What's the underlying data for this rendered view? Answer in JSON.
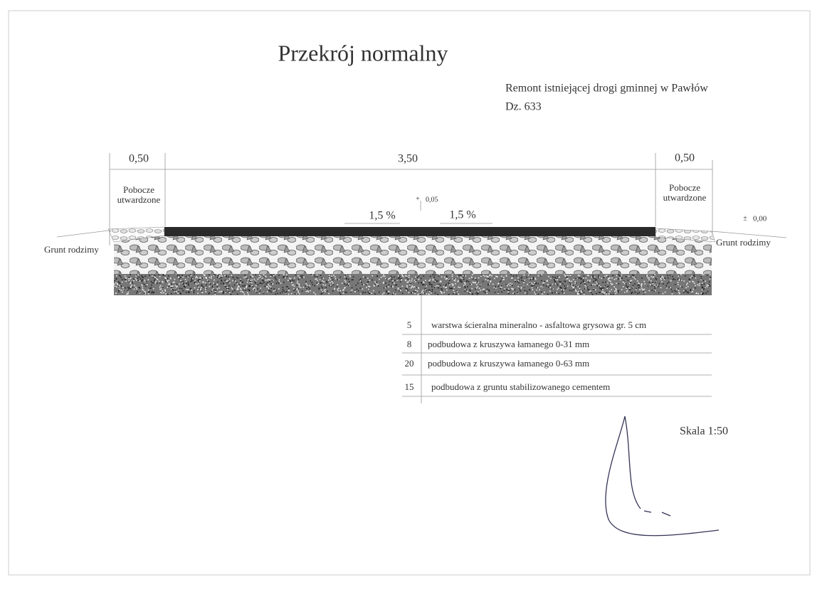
{
  "title": "Przekrój  normalny",
  "project": {
    "line1": "Remont istniejącej drogi gminnej w Pawłów",
    "line2": "Dz.  633"
  },
  "dimensions": {
    "left": "0,50",
    "middle": "3,50",
    "right": "0,50"
  },
  "shoulders": {
    "left": {
      "line1": "Pobocze",
      "line2": "utwardzone"
    },
    "right": {
      "line1": "Pobocze",
      "line2": "utwardzone"
    }
  },
  "elevations": {
    "axis": {
      "sign": "+",
      "value": "0,05"
    },
    "edge": {
      "sign": "±",
      "value": "0,00"
    }
  },
  "slopes": {
    "left": "1,5 %",
    "right": "1,5 %"
  },
  "ground": {
    "left": "Grunt rodzimy",
    "right": "Grunt rodzimy"
  },
  "layers": [
    {
      "thickness": 5,
      "description": "warstwa ścieralna mineralno - asfaltowa grysowa gr. 5 cm"
    },
    {
      "thickness": 8,
      "description": "podbudowa z kruszywa łamanego  0-31 mm"
    },
    {
      "thickness": 20,
      "description": "podbudowa z kruszywa łamanego 0-63 mm"
    },
    {
      "thickness": 15,
      "description": "podbudowa z gruntu stabilizowanego cementem"
    }
  ],
  "scale": "Skala 1:50"
}
